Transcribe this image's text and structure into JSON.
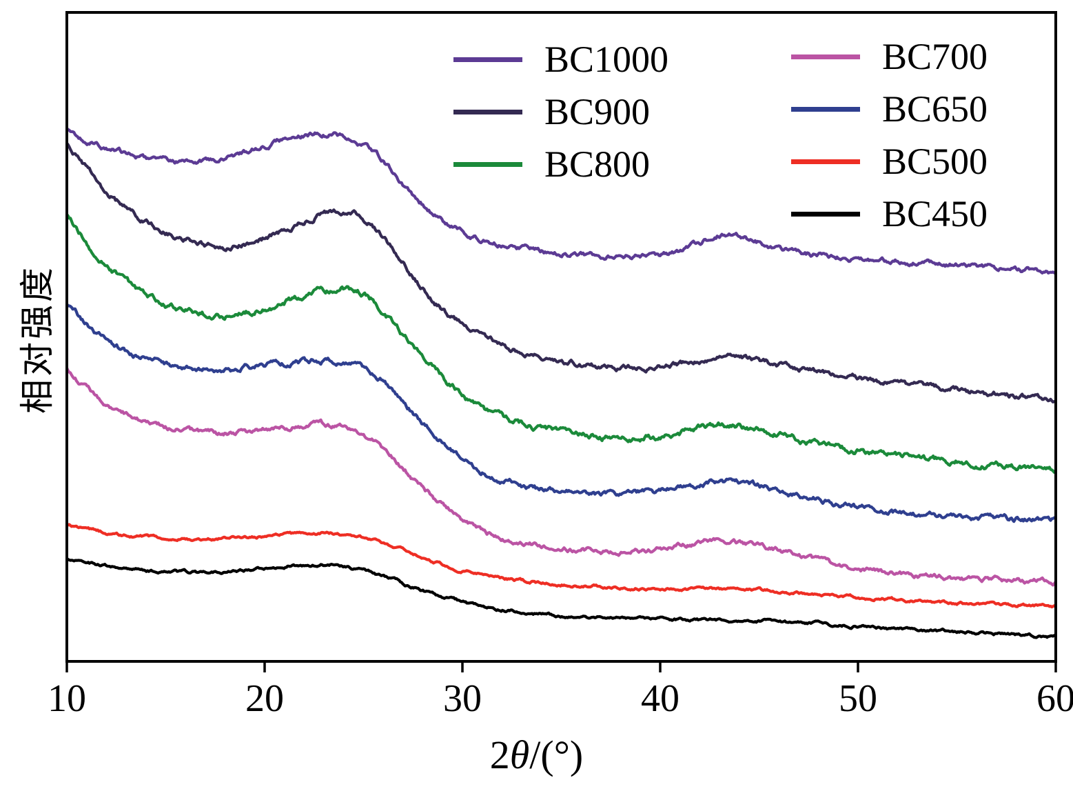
{
  "chart_data": {
    "type": "line",
    "title": "",
    "xlabel": "2θ/(°)",
    "xlabel_parts": {
      "prefix": "2",
      "symbol": "θ",
      "suffix": "/(°)"
    },
    "ylabel": "相对强度",
    "xlim": [
      10,
      60
    ],
    "ylim": [
      0,
      100
    ],
    "xticks": [
      10,
      20,
      30,
      40,
      50,
      60
    ],
    "grid": false,
    "legend_position": "top-center",
    "legend_columns": [
      [
        "BC1000",
        "BC900",
        "BC800"
      ],
      [
        "BC700",
        "BC650",
        "BC500",
        "BC450"
      ]
    ],
    "axis_color": "#000000",
    "x": [
      10,
      11,
      12,
      13,
      14,
      15,
      16,
      18,
      20,
      21,
      22,
      23,
      24,
      25,
      26,
      27,
      28,
      29,
      30,
      31,
      32,
      34,
      36,
      38,
      40,
      41,
      42,
      43,
      44,
      45,
      46,
      48,
      50,
      52,
      54,
      56,
      58,
      60
    ],
    "series": [
      {
        "name": "BC1000",
        "color": "#5c3b94",
        "values": [
          82.0,
          80.3,
          79.0,
          78.2,
          77.6,
          77.2,
          77.0,
          77.6,
          79.5,
          80.4,
          81.0,
          81.3,
          80.8,
          79.5,
          77.0,
          73.5,
          70.5,
          68.0,
          66.2,
          65.0,
          64.2,
          63.2,
          62.7,
          62.4,
          62.6,
          63.2,
          64.5,
          65.8,
          65.5,
          64.5,
          63.6,
          62.6,
          62.0,
          61.6,
          61.2,
          60.8,
          60.4,
          60.0
        ]
      },
      {
        "name": "BC900",
        "color": "#342a52",
        "values": [
          80.0,
          76.0,
          72.5,
          69.8,
          67.8,
          66.3,
          65.2,
          63.8,
          65.2,
          66.4,
          67.8,
          69.0,
          69.3,
          68.3,
          65.5,
          61.5,
          57.5,
          54.3,
          51.8,
          50.0,
          48.6,
          46.8,
          45.8,
          45.2,
          45.4,
          45.8,
          46.5,
          47.2,
          47.0,
          46.3,
          45.6,
          44.6,
          43.7,
          42.9,
          42.2,
          41.5,
          40.9,
          40.3
        ]
      },
      {
        "name": "BC800",
        "color": "#1b8a3a",
        "values": [
          69.0,
          64.5,
          61.0,
          58.5,
          56.5,
          55.0,
          54.0,
          53.2,
          54.3,
          55.3,
          56.4,
          57.2,
          57.5,
          56.6,
          54.0,
          50.5,
          47.0,
          43.8,
          41.0,
          39.0,
          37.6,
          35.8,
          34.9,
          34.5,
          34.8,
          35.3,
          36.0,
          36.6,
          36.4,
          35.8,
          35.0,
          33.6,
          32.4,
          31.6,
          31.0,
          30.4,
          30.0,
          29.6
        ]
      },
      {
        "name": "BC700",
        "color": "#bb54a4",
        "values": [
          45.0,
          42.0,
          39.8,
          38.2,
          37.0,
          36.2,
          35.6,
          35.1,
          35.7,
          36.0,
          36.3,
          36.4,
          36.1,
          35.0,
          32.8,
          29.8,
          26.8,
          24.0,
          21.8,
          20.2,
          19.0,
          17.7,
          17.2,
          17.0,
          17.4,
          17.8,
          18.3,
          18.6,
          18.4,
          17.8,
          17.0,
          15.5,
          14.3,
          13.5,
          13.0,
          12.7,
          12.4,
          12.2
        ]
      },
      {
        "name": "BC650",
        "color": "#2f3f8f",
        "values": [
          55.2,
          52.0,
          49.5,
          47.8,
          46.6,
          45.9,
          45.4,
          45.0,
          45.7,
          46.0,
          46.3,
          46.4,
          46.1,
          45.2,
          43.2,
          40.0,
          36.8,
          33.8,
          31.2,
          29.3,
          28.0,
          26.5,
          26.0,
          25.8,
          26.2,
          26.6,
          27.2,
          27.7,
          27.5,
          27.0,
          26.3,
          24.9,
          23.6,
          22.8,
          22.4,
          22.1,
          21.9,
          21.7
        ]
      },
      {
        "name": "BC500",
        "color": "#ee2e24",
        "values": [
          21.2,
          20.4,
          19.8,
          19.4,
          19.1,
          18.9,
          18.8,
          18.9,
          19.3,
          19.5,
          19.7,
          19.8,
          19.6,
          19.1,
          18.3,
          17.2,
          16.0,
          14.9,
          14.0,
          13.3,
          12.8,
          12.1,
          11.7,
          11.4,
          11.2,
          11.2,
          11.2,
          11.2,
          11.1,
          11.0,
          10.8,
          10.4,
          9.9,
          9.5,
          9.1,
          8.9,
          8.7,
          8.5
        ]
      },
      {
        "name": "BC450",
        "color": "#000000",
        "values": [
          15.9,
          15.2,
          14.7,
          14.3,
          14.0,
          13.8,
          13.7,
          13.8,
          14.3,
          14.6,
          14.8,
          14.9,
          14.6,
          14.0,
          13.1,
          12.0,
          10.9,
          9.9,
          9.1,
          8.5,
          8.0,
          7.3,
          6.9,
          6.7,
          6.5,
          6.45,
          6.4,
          6.35,
          6.3,
          6.25,
          6.1,
          5.8,
          5.4,
          5.0,
          4.7,
          4.4,
          4.1,
          3.8
        ]
      }
    ]
  }
}
